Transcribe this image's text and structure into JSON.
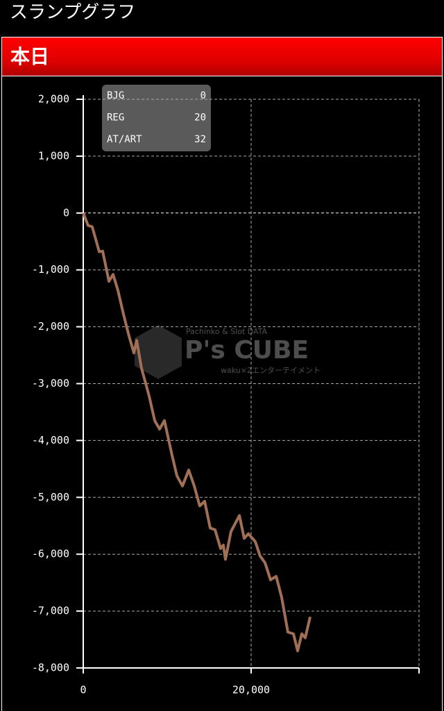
{
  "header": {
    "title": "スランプグラフ",
    "section": "本日"
  },
  "counters": [
    {
      "name": "BJG",
      "value": "0"
    },
    {
      "name": "REG",
      "value": "20"
    },
    {
      "name": "AT/ART",
      "value": "32"
    }
  ],
  "watermark": {
    "tagline": "Pachinko & Slot DATA",
    "brand": "P's CUBE",
    "company": "waku×2エンターテイメント"
  },
  "chart_data": {
    "type": "line",
    "x": [
      0,
      580,
      1070,
      1900,
      2310,
      3060,
      3550,
      4130,
      4790,
      5370,
      6030,
      6360,
      6940,
      7850,
      8510,
      9090,
      9670,
      10580,
      11160,
      11820,
      12560,
      13220,
      13880,
      14460,
      15120,
      15700,
      16360,
      16690,
      16940,
      17600,
      18600,
      19170,
      19670,
      20500,
      21070,
      21650,
      22310,
      22980,
      23640,
      24380,
      25040,
      25540,
      26030,
      26450,
      27030
    ],
    "series": [
      {
        "color": "#a06f55",
        "values": [
          0,
          -220,
          -240,
          -680,
          -670,
          -1200,
          -1080,
          -1360,
          -1780,
          -2120,
          -2460,
          -2240,
          -2730,
          -3220,
          -3650,
          -3800,
          -3650,
          -4260,
          -4620,
          -4800,
          -4520,
          -4800,
          -5150,
          -5070,
          -5540,
          -5570,
          -5900,
          -5840,
          -6090,
          -5600,
          -5320,
          -5720,
          -5640,
          -5780,
          -6030,
          -6150,
          -6450,
          -6390,
          -6760,
          -7370,
          -7400,
          -7700,
          -7400,
          -7470,
          -7100
        ]
      }
    ],
    "xlim": [
      0,
      40000
    ],
    "xticks": [
      0,
      {
        "value": 20000,
        "label": "20,000"
      }
    ],
    "ylim": [
      -8000,
      2000
    ],
    "yticks": [
      {
        "value": 2000,
        "label": "2,000"
      },
      {
        "value": 1000,
        "label": "1,000"
      },
      0,
      {
        "value": -1000,
        "label": "-1,000"
      },
      {
        "value": -2000,
        "label": "-2,000"
      },
      {
        "value": -3000,
        "label": "-3,000"
      },
      {
        "value": -4000,
        "label": "-4,000"
      },
      {
        "value": -5000,
        "label": "-5,000"
      },
      {
        "value": -6000,
        "label": "-6,000"
      },
      {
        "value": -7000,
        "label": "-7,000"
      },
      {
        "value": -8000,
        "label": "-8,000"
      }
    ],
    "grid": true
  }
}
